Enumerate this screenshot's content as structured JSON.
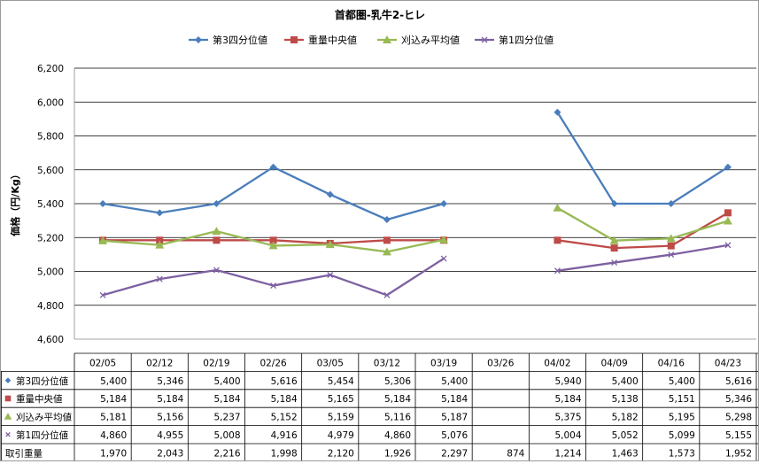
{
  "chart_data": {
    "type": "line",
    "title": "首都圏-乳牛2-ヒレ",
    "ylabel": "価格（円/Kg）",
    "xlabel": "",
    "ylim": [
      4600,
      6200
    ],
    "yticks": [
      "4,600",
      "4,800",
      "5,000",
      "5,200",
      "5,400",
      "5,600",
      "5,800",
      "6,000",
      "6,200"
    ],
    "ytick_values": [
      4600,
      4800,
      5000,
      5200,
      5400,
      5600,
      5800,
      6000,
      6200
    ],
    "grid": true,
    "legend_position": "top",
    "categories": [
      "02/05",
      "02/12",
      "02/19",
      "02/26",
      "03/05",
      "03/12",
      "03/19",
      "03/26",
      "04/02",
      "04/09",
      "04/16",
      "04/23"
    ],
    "series": [
      {
        "name": "第3四分位値",
        "color": "#4a7ebb",
        "marker": "diamond",
        "values": [
          5400,
          5346,
          5400,
          5616,
          5454,
          5306,
          5400,
          null,
          5940,
          5400,
          5400,
          5616
        ],
        "labels": [
          "5,400",
          "5,346",
          "5,400",
          "5,616",
          "5,454",
          "5,306",
          "5,400",
          "",
          "5,940",
          "5,400",
          "5,400",
          "5,616"
        ]
      },
      {
        "name": "重量中央値",
        "color": "#be4b48",
        "marker": "square",
        "values": [
          5184,
          5184,
          5184,
          5184,
          5165,
          5184,
          5184,
          null,
          5184,
          5138,
          5151,
          5346
        ],
        "labels": [
          "5,184",
          "5,184",
          "5,184",
          "5,184",
          "5,165",
          "5,184",
          "5,184",
          "",
          "5,184",
          "5,138",
          "5,151",
          "5,346"
        ]
      },
      {
        "name": "刈込み平均値",
        "color": "#98b954",
        "marker": "triangle",
        "values": [
          5181,
          5156,
          5237,
          5152,
          5159,
          5116,
          5187,
          null,
          5375,
          5182,
          5195,
          5298
        ],
        "labels": [
          "5,181",
          "5,156",
          "5,237",
          "5,152",
          "5,159",
          "5,116",
          "5,187",
          "",
          "5,375",
          "5,182",
          "5,195",
          "5,298"
        ]
      },
      {
        "name": "第1四分位値",
        "color": "#7d60a0",
        "marker": "x",
        "values": [
          4860,
          4955,
          5008,
          4916,
          4979,
          4860,
          5076,
          null,
          5004,
          5052,
          5099,
          5155
        ],
        "labels": [
          "4,860",
          "4,955",
          "5,008",
          "4,916",
          "4,979",
          "4,860",
          "5,076",
          "",
          "5,004",
          "5,052",
          "5,099",
          "5,155"
        ]
      }
    ],
    "table_extra_row": {
      "name": "取引重量",
      "values": [
        1970,
        2043,
        2216,
        1998,
        2120,
        1926,
        2297,
        874,
        1214,
        1463,
        1573,
        1952
      ],
      "labels": [
        "1,970",
        "2,043",
        "2,216",
        "1,998",
        "2,120",
        "1,926",
        "2,297",
        "874",
        "1,214",
        "1,463",
        "1,573",
        "1,952"
      ]
    }
  }
}
